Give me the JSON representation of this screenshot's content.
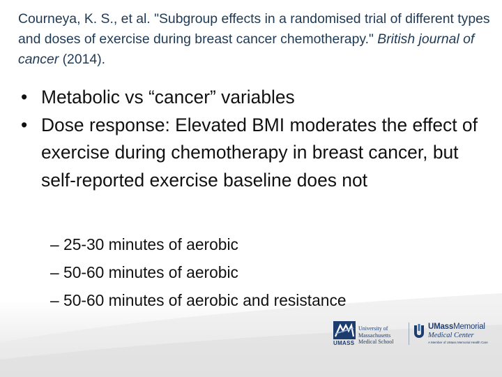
{
  "citation": {
    "authors": "Courneya, K. S., et al.",
    "title": "\"Subgroup effects in a randomised trial of different types and doses of exercise during breast cancer chemotherapy.\"",
    "journal": "British journal of cancer",
    "year": "(2014)."
  },
  "bullets": [
    {
      "marker": "•",
      "text": "Metabolic vs “cancer” variables"
    },
    {
      "marker": "•",
      "text": "Dose response: Elevated BMI moderates the effect of exercise during chemotherapy in breast cancer, but self-reported exercise baseline does not"
    }
  ],
  "sub_bullets": [
    {
      "text": "– 25-30 minutes of aerobic"
    },
    {
      "text": "– 50-60 minutes of aerobic"
    },
    {
      "text": "– 50-60 minutes of aerobic and resistance"
    }
  ],
  "logos": {
    "umass": {
      "wordmark": "UMASS",
      "line1": "University of",
      "line2": "Massachusetts",
      "line3": "Medical School"
    },
    "memorial": {
      "name_bold": "UMass",
      "name_light": "Memorial",
      "sub": "Medical Center",
      "tagline": "A Member of UMass Memorial Health Care"
    }
  },
  "colors": {
    "citation_text": "#1f3a55",
    "body_text": "#111111",
    "logo_blue": "#1d3c6e"
  }
}
